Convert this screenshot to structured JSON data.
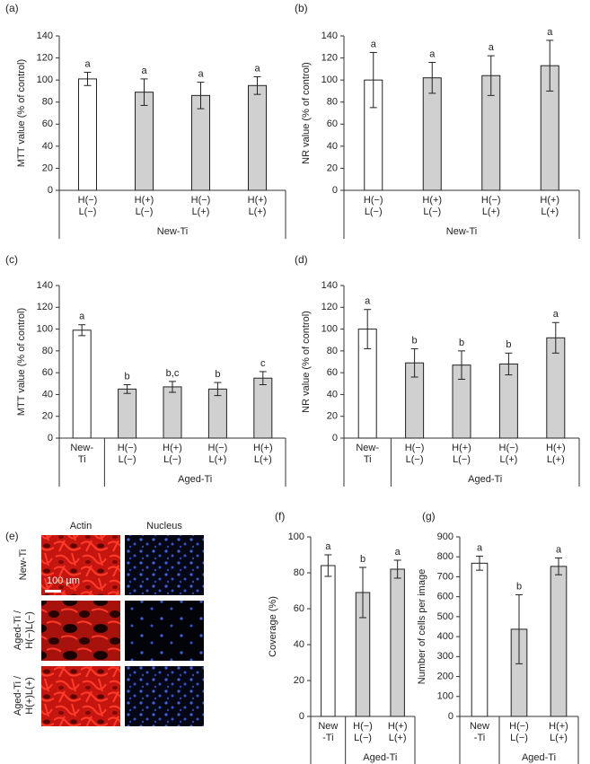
{
  "chart_data": [
    {
      "type": "bar",
      "title": "(a)",
      "y_label": "MTT value (% of control)",
      "ylim": [
        0,
        140
      ],
      "yticks": [
        0,
        20,
        40,
        60,
        80,
        100,
        120,
        140
      ],
      "groups": [
        {
          "name": "New-Ti",
          "categories": [
            [
              "H(−)",
              "L(−)"
            ],
            [
              "H(+)",
              "L(−)"
            ],
            [
              "H(−)",
              "L(+)"
            ],
            [
              "H(+)",
              "L(+)"
            ]
          ]
        }
      ],
      "values": [
        101,
        89,
        86,
        95
      ],
      "errors": [
        6,
        12,
        12,
        8
      ],
      "letters": [
        "a",
        "a",
        "a",
        "a"
      ],
      "colors": [
        "#ffffff",
        "#d0d0d0",
        "#d0d0d0",
        "#d0d0d0"
      ]
    },
    {
      "type": "bar",
      "title": "(b)",
      "y_label": "NR value (% of control)",
      "ylim": [
        0,
        140
      ],
      "yticks": [
        0,
        20,
        40,
        60,
        80,
        100,
        120,
        140
      ],
      "groups": [
        {
          "name": "New-Ti",
          "categories": [
            [
              "H(−)",
              "L(−)"
            ],
            [
              "H(+)",
              "L(−)"
            ],
            [
              "H(−)",
              "L(+)"
            ],
            [
              "H(+)",
              "L(+)"
            ]
          ]
        }
      ],
      "values": [
        100,
        102,
        104,
        113
      ],
      "errors": [
        25,
        14,
        18,
        23
      ],
      "letters": [
        "a",
        "a",
        "a",
        "a"
      ],
      "colors": [
        "#ffffff",
        "#d0d0d0",
        "#d0d0d0",
        "#d0d0d0"
      ]
    },
    {
      "type": "bar",
      "title": "(c)",
      "y_label": "MTT value (% of control)",
      "ylim": [
        0,
        140
      ],
      "yticks": [
        0,
        20,
        40,
        60,
        80,
        100,
        120,
        140
      ],
      "groups": [
        {
          "name": null,
          "categories": [
            [
              "New-",
              "Ti"
            ]
          ]
        },
        {
          "name": "Aged-Ti",
          "categories": [
            [
              "H(−)",
              "L(−)"
            ],
            [
              "H(+)",
              "L(−)"
            ],
            [
              "H(−)",
              "L(+)"
            ],
            [
              "H(+)",
              "L(+)"
            ]
          ]
        }
      ],
      "values": [
        99,
        45,
        47,
        45,
        55
      ],
      "errors": [
        5,
        4,
        5,
        6,
        6
      ],
      "letters": [
        "a",
        "b",
        "b,c",
        "b",
        "c"
      ],
      "colors": [
        "#ffffff",
        "#d0d0d0",
        "#d0d0d0",
        "#d0d0d0",
        "#d0d0d0"
      ]
    },
    {
      "type": "bar",
      "title": "(d)",
      "y_label": "NR value (% of control)",
      "ylim": [
        0,
        140
      ],
      "yticks": [
        0,
        20,
        40,
        60,
        80,
        100,
        120,
        140
      ],
      "groups": [
        {
          "name": null,
          "categories": [
            [
              "New-",
              "Ti"
            ]
          ]
        },
        {
          "name": "Aged-Ti",
          "categories": [
            [
              "H(−)",
              "L(−)"
            ],
            [
              "H(+)",
              "L(−)"
            ],
            [
              "H(−)",
              "L(+)"
            ],
            [
              "H(+)",
              "L(+)"
            ]
          ]
        }
      ],
      "values": [
        100,
        69,
        67,
        68,
        92
      ],
      "errors": [
        18,
        13,
        13,
        10,
        14
      ],
      "letters": [
        "a",
        "b",
        "b",
        "b",
        "a"
      ],
      "colors": [
        "#ffffff",
        "#d0d0d0",
        "#d0d0d0",
        "#d0d0d0",
        "#d0d0d0"
      ]
    },
    {
      "type": "bar",
      "title": "(f)",
      "y_label": "Coverage (%)",
      "ylim": [
        0,
        100
      ],
      "yticks": [
        0,
        20,
        40,
        60,
        80,
        100
      ],
      "groups": [
        {
          "name": null,
          "categories": [
            [
              "New",
              "-Ti"
            ]
          ]
        },
        {
          "name": "Aged-Ti",
          "categories": [
            [
              "H(−)",
              "L(−)"
            ],
            [
              "H(+)",
              "L(+)"
            ]
          ]
        }
      ],
      "values": [
        84,
        69,
        82
      ],
      "errors": [
        6,
        14,
        5
      ],
      "letters": [
        "a",
        "b",
        "a"
      ],
      "colors": [
        "#ffffff",
        "#d0d0d0",
        "#d0d0d0"
      ]
    },
    {
      "type": "bar",
      "title": "(g)",
      "y_label": "Number of cells per image",
      "ylim": [
        0,
        900
      ],
      "yticks": [
        0,
        100,
        200,
        300,
        400,
        500,
        600,
        700,
        800,
        900
      ],
      "groups": [
        {
          "name": null,
          "categories": [
            [
              "New",
              "-Ti"
            ]
          ]
        },
        {
          "name": "Aged-Ti",
          "categories": [
            [
              "H(−)",
              "L(−)"
            ],
            [
              "H(+)",
              "L(+)"
            ]
          ]
        }
      ],
      "values": [
        768,
        437,
        752
      ],
      "errors": [
        35,
        173,
        42
      ],
      "letters": [
        "a",
        "b",
        "a"
      ],
      "colors": [
        "#ffffff",
        "#d0d0d0",
        "#d0d0d0"
      ]
    }
  ],
  "image_panel": {
    "title": "(e)",
    "columns": [
      "Actin",
      "Nucleus"
    ],
    "rows": [
      [
        "New-Ti"
      ],
      [
        "Aged-Ti /",
        "H(−)L(−)"
      ],
      [
        "Aged-Ti /",
        "H(+)L(+)"
      ]
    ],
    "scale_bar": "100 µm"
  }
}
